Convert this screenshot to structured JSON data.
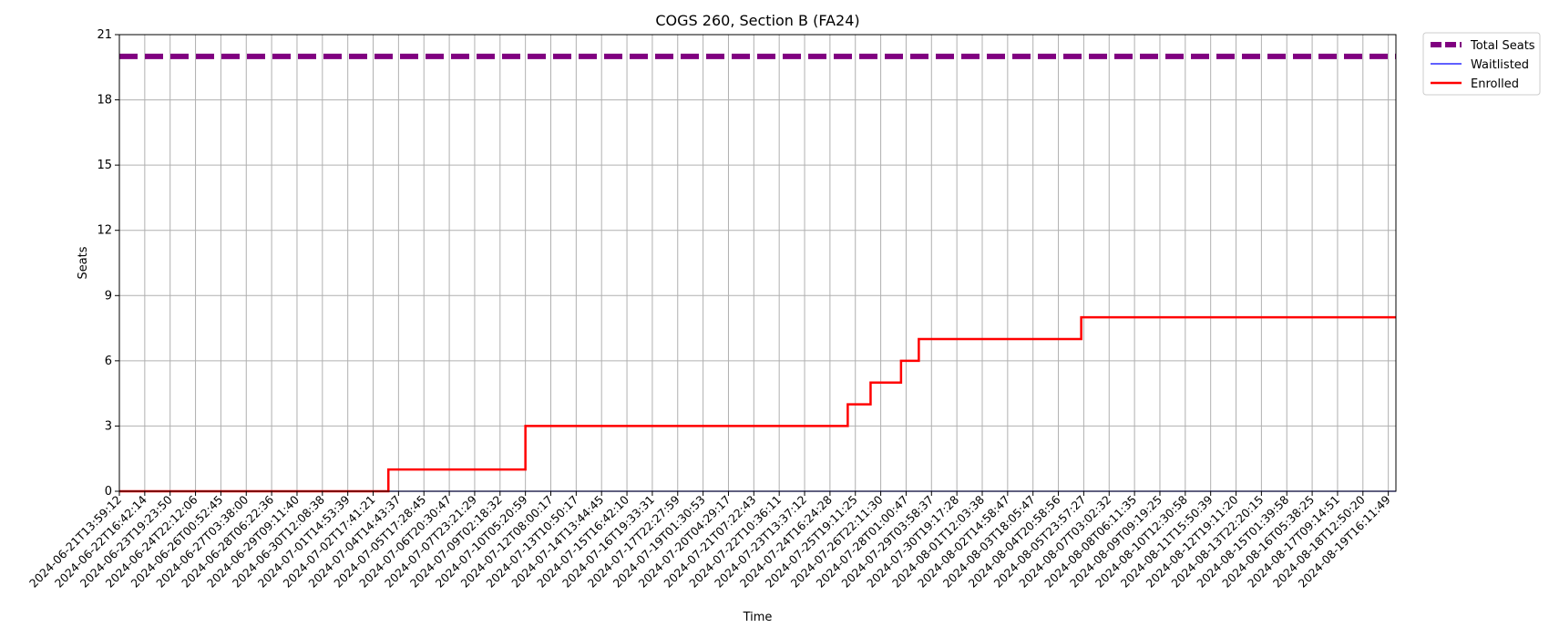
{
  "chart_data": {
    "type": "line",
    "title": "COGS 260, Section B (FA24)",
    "xlabel": "Time",
    "ylabel": "Seats",
    "ylim": [
      0,
      21
    ],
    "yticks": [
      0,
      3,
      6,
      9,
      12,
      15,
      18,
      21
    ],
    "grid": true,
    "legend_position": "outside-top-right",
    "x_tick_labels": [
      "2024-06-21T13:59:12",
      "2024-06-22T16:42:14",
      "2024-06-23T19:23:50",
      "2024-06-24T22:12:06",
      "2024-06-26T00:52:45",
      "2024-06-27T03:38:00",
      "2024-06-28T06:22:36",
      "2024-06-29T09:11:40",
      "2024-06-30T12:08:38",
      "2024-07-01T14:53:39",
      "2024-07-02T17:41:21",
      "2024-07-04T14:43:37",
      "2024-07-05T17:28:45",
      "2024-07-06T20:30:47",
      "2024-07-07T23:21:29",
      "2024-07-09T02:18:32",
      "2024-07-10T05:20:59",
      "2024-07-12T08:00:17",
      "2024-07-13T10:50:17",
      "2024-07-14T13:44:45",
      "2024-07-15T16:42:10",
      "2024-07-16T19:33:31",
      "2024-07-17T22:27:59",
      "2024-07-19T01:30:53",
      "2024-07-20T04:29:17",
      "2024-07-21T07:22:43",
      "2024-07-22T10:36:11",
      "2024-07-23T13:37:12",
      "2024-07-24T16:24:28",
      "2024-07-25T19:11:25",
      "2024-07-26T22:11:30",
      "2024-07-28T01:00:47",
      "2024-07-29T03:58:37",
      "2024-07-30T19:17:28",
      "2024-08-01T12:03:38",
      "2024-08-02T14:58:47",
      "2024-08-03T18:05:47",
      "2024-08-04T20:58:56",
      "2024-08-05T23:57:27",
      "2024-08-07T03:02:32",
      "2024-08-08T06:11:35",
      "2024-08-09T09:19:25",
      "2024-08-10T12:30:58",
      "2024-08-11T15:50:39",
      "2024-08-12T19:11:20",
      "2024-08-13T22:20:15",
      "2024-08-15T01:39:58",
      "2024-08-16T05:38:25",
      "2024-08-17T09:14:51",
      "2024-08-18T12:50:20",
      "2024-08-19T16:11:49"
    ],
    "x_extent": [
      0,
      50.3
    ],
    "series": [
      {
        "name": "Total Seats",
        "color": "#800080",
        "style": "dashed-thick",
        "x": [
          0,
          50.3
        ],
        "y": [
          20,
          20
        ]
      },
      {
        "name": "Waitlisted",
        "color": "#0000ff",
        "style": "solid-thin",
        "x": [
          0,
          50.3
        ],
        "y": [
          0,
          0
        ]
      },
      {
        "name": "Enrolled",
        "color": "#ff0000",
        "style": "step",
        "x": [
          0,
          10.6,
          16.0,
          28.7,
          29.6,
          30.8,
          31.5,
          37.9,
          50.3
        ],
        "y": [
          0,
          1,
          3,
          4,
          5,
          6,
          7,
          8,
          8
        ]
      }
    ]
  }
}
